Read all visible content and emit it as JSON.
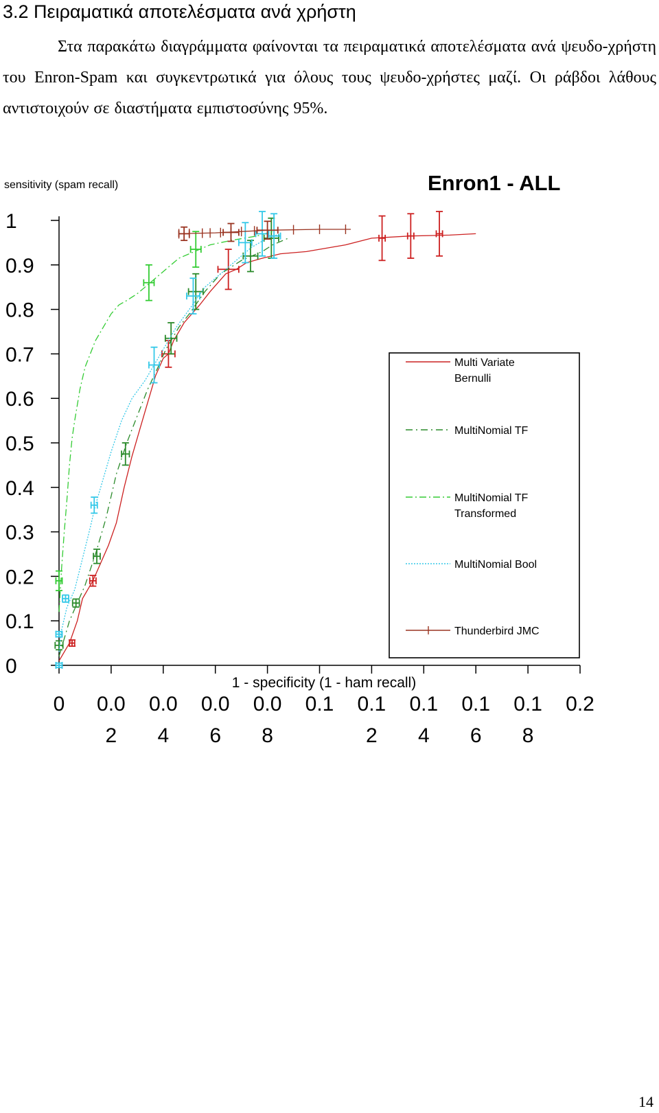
{
  "section": {
    "heading": "3.2 Πειραματικά αποτελέσματα ανά χρήστη",
    "paragraph": "Στα παρακάτω διαγράμματα φαίνονται τα πειραματικά αποτελέσματα ανά ψευδο-χρήστη του Enron-Spam και συγκεντρωτικά για όλους τους ψευδο-χρήστες μαζί. Οι ράβδοι λάθους αντιστοιχούν σε διαστήματα εμπιστοσύνης 95%."
  },
  "page_number": "14",
  "chart_data": {
    "type": "line",
    "title": "Enron1 - ALL",
    "xlabel": "1 - specificity (1 - ham recall)",
    "ylabel": "sensitivity (spam recall)",
    "xlim": [
      0,
      0.2
    ],
    "ylim": [
      0,
      1
    ],
    "grid": false,
    "legend_position": "right",
    "x_ticks": [
      {
        "value": 0,
        "line1": "0",
        "line2": ""
      },
      {
        "value": 0.02,
        "line1": "0.0",
        "line2": "2"
      },
      {
        "value": 0.04,
        "line1": "0.0",
        "line2": "4"
      },
      {
        "value": 0.06,
        "line1": "0.0",
        "line2": "6"
      },
      {
        "value": 0.08,
        "line1": "0.0",
        "line2": "8"
      },
      {
        "value": 0.1,
        "line1": "0.1",
        "line2": ""
      },
      {
        "value": 0.12,
        "line1": "0.1",
        "line2": "2"
      },
      {
        "value": 0.14,
        "line1": "0.1",
        "line2": "4"
      },
      {
        "value": 0.16,
        "line1": "0.1",
        "line2": "6"
      },
      {
        "value": 0.18,
        "line1": "0.1",
        "line2": "8"
      },
      {
        "value": 0.2,
        "line1": "0.2",
        "line2": ""
      }
    ],
    "y_ticks": [
      {
        "value": 0,
        "label": "0"
      },
      {
        "value": 0.1,
        "label": "0.1"
      },
      {
        "value": 0.2,
        "label": "0.2"
      },
      {
        "value": 0.3,
        "label": "0.3"
      },
      {
        "value": 0.4,
        "label": "0.4"
      },
      {
        "value": 0.5,
        "label": "0.5"
      },
      {
        "value": 0.6,
        "label": "0.6"
      },
      {
        "value": 0.7,
        "label": "0.7"
      },
      {
        "value": 0.8,
        "label": "0.8"
      },
      {
        "value": 0.9,
        "label": "0.9"
      },
      {
        "value": 1,
        "label": "1"
      }
    ],
    "series": [
      {
        "name": "Multi Variate Bernulli",
        "color": "#cc2020",
        "dash": "",
        "line_width": 1.3,
        "points": [
          [
            0,
            0.01
          ],
          [
            0.002,
            0.03
          ],
          [
            0.004,
            0.05
          ],
          [
            0.007,
            0.1
          ],
          [
            0.009,
            0.15
          ],
          [
            0.013,
            0.19
          ],
          [
            0.016,
            0.23
          ],
          [
            0.019,
            0.27
          ],
          [
            0.022,
            0.32
          ],
          [
            0.025,
            0.4
          ],
          [
            0.028,
            0.47
          ],
          [
            0.031,
            0.53
          ],
          [
            0.034,
            0.59
          ],
          [
            0.037,
            0.65
          ],
          [
            0.04,
            0.69
          ],
          [
            0.042,
            0.7
          ],
          [
            0.044,
            0.73
          ],
          [
            0.048,
            0.77
          ],
          [
            0.054,
            0.81
          ],
          [
            0.058,
            0.84
          ],
          [
            0.064,
            0.88
          ],
          [
            0.068,
            0.89
          ],
          [
            0.072,
            0.905
          ],
          [
            0.078,
            0.915
          ],
          [
            0.085,
            0.925
          ],
          [
            0.095,
            0.93
          ],
          [
            0.11,
            0.945
          ],
          [
            0.12,
            0.96
          ],
          [
            0.135,
            0.965
          ],
          [
            0.15,
            0.967
          ],
          [
            0.16,
            0.97
          ]
        ],
        "error_bars": [
          {
            "x": 0.005,
            "y": 0.05,
            "xe": 0.001,
            "ye": 0.007
          },
          {
            "x": 0.013,
            "y": 0.19,
            "xe": 0.0012,
            "ye": 0.012
          },
          {
            "x": 0.042,
            "y": 0.7,
            "xe": 0.0025,
            "ye": 0.03
          },
          {
            "x": 0.065,
            "y": 0.89,
            "xe": 0.004,
            "ye": 0.045
          },
          {
            "x": 0.124,
            "y": 0.96,
            "xe": 0.0012,
            "ye": 0.05
          },
          {
            "x": 0.135,
            "y": 0.965,
            "xe": 0.0012,
            "ye": 0.05
          },
          {
            "x": 0.146,
            "y": 0.97,
            "xe": 0.0012,
            "ye": 0.05
          }
        ]
      },
      {
        "name": "MultiNomial TF",
        "color": "#2a8a2a",
        "dash": "10 5 2 5",
        "line_width": 1.3,
        "points": [
          [
            0,
            0.02
          ],
          [
            0.002,
            0.06
          ],
          [
            0.004,
            0.1
          ],
          [
            0.007,
            0.14
          ],
          [
            0.01,
            0.18
          ],
          [
            0.014,
            0.25
          ],
          [
            0.018,
            0.33
          ],
          [
            0.022,
            0.43
          ],
          [
            0.026,
            0.5
          ],
          [
            0.03,
            0.56
          ],
          [
            0.034,
            0.62
          ],
          [
            0.038,
            0.67
          ],
          [
            0.041,
            0.71
          ],
          [
            0.043,
            0.73
          ],
          [
            0.046,
            0.76
          ],
          [
            0.05,
            0.79
          ],
          [
            0.056,
            0.84
          ],
          [
            0.062,
            0.88
          ],
          [
            0.07,
            0.91
          ],
          [
            0.078,
            0.93
          ],
          [
            0.082,
            0.945
          ],
          [
            0.088,
            0.96
          ]
        ],
        "error_bars": [
          {
            "x": 0,
            "y": 0.045,
            "xe": 0.0015,
            "ye": 0.01
          },
          {
            "x": 0.0065,
            "y": 0.14,
            "xe": 0.0013,
            "ye": 0.009
          },
          {
            "x": 0.0145,
            "y": 0.245,
            "xe": 0.0013,
            "ye": 0.016
          },
          {
            "x": 0.0255,
            "y": 0.475,
            "xe": 0.0015,
            "ye": 0.025
          },
          {
            "x": 0.043,
            "y": 0.735,
            "xe": 0.0022,
            "ye": 0.035
          },
          {
            "x": 0.0525,
            "y": 0.84,
            "xe": 0.0028,
            "ye": 0.04
          },
          {
            "x": 0.0735,
            "y": 0.92,
            "xe": 0.0028,
            "ye": 0.035
          },
          {
            "x": 0.0815,
            "y": 0.96,
            "xe": 0.0028,
            "ye": 0.045
          }
        ]
      },
      {
        "name": "MultiNomial TF Transformed",
        "color": "#33cc33",
        "dash": "10 4 2 4",
        "line_width": 1.3,
        "points": [
          [
            0,
            0.12
          ],
          [
            0.001,
            0.22
          ],
          [
            0.002,
            0.3
          ],
          [
            0.003,
            0.37
          ],
          [
            0.004,
            0.45
          ],
          [
            0.005,
            0.51
          ],
          [
            0.006,
            0.55
          ],
          [
            0.008,
            0.62
          ],
          [
            0.01,
            0.67
          ],
          [
            0.012,
            0.7
          ],
          [
            0.014,
            0.73
          ],
          [
            0.016,
            0.75
          ],
          [
            0.018,
            0.77
          ],
          [
            0.02,
            0.79
          ],
          [
            0.023,
            0.81
          ],
          [
            0.026,
            0.82
          ],
          [
            0.03,
            0.835
          ],
          [
            0.034,
            0.855
          ],
          [
            0.038,
            0.875
          ],
          [
            0.042,
            0.895
          ],
          [
            0.046,
            0.915
          ],
          [
            0.052,
            0.93
          ],
          [
            0.058,
            0.945
          ],
          [
            0.066,
            0.955
          ],
          [
            0.076,
            0.965
          ],
          [
            0.082,
            0.975
          ]
        ],
        "error_bars": [
          {
            "x": 0,
            "y": 0.19,
            "xe": 0.0012,
            "ye": 0.022
          },
          {
            "x": 0.0345,
            "y": 0.86,
            "xe": 0.002,
            "ye": 0.04
          },
          {
            "x": 0.0525,
            "y": 0.935,
            "xe": 0.002,
            "ye": 0.04
          }
        ]
      },
      {
        "name": "MultiNomial Bool",
        "color": "#33c8e8",
        "dash": "2 2",
        "line_width": 1.3,
        "points": [
          [
            0,
            0.03
          ],
          [
            0.001,
            0.08
          ],
          [
            0.003,
            0.13
          ],
          [
            0.006,
            0.17
          ],
          [
            0.009,
            0.24
          ],
          [
            0.012,
            0.31
          ],
          [
            0.014,
            0.36
          ],
          [
            0.017,
            0.42
          ],
          [
            0.02,
            0.48
          ],
          [
            0.024,
            0.55
          ],
          [
            0.028,
            0.6
          ],
          [
            0.033,
            0.64
          ],
          [
            0.036,
            0.67
          ],
          [
            0.038,
            0.69
          ],
          [
            0.041,
            0.72
          ],
          [
            0.045,
            0.76
          ],
          [
            0.05,
            0.8
          ],
          [
            0.056,
            0.85
          ],
          [
            0.062,
            0.88
          ],
          [
            0.068,
            0.91
          ],
          [
            0.074,
            0.94
          ],
          [
            0.08,
            0.96
          ],
          [
            0.085,
            0.97
          ]
        ],
        "error_bars": [
          {
            "x": 0,
            "y": 0,
            "xe": 0.0012,
            "ye": 0.005
          },
          {
            "x": 0,
            "y": 0.07,
            "xe": 0.0012,
            "ye": 0.006
          },
          {
            "x": 0.0025,
            "y": 0.15,
            "xe": 0.0012,
            "ye": 0.008
          },
          {
            "x": 0.0135,
            "y": 0.36,
            "xe": 0.0012,
            "ye": 0.018
          },
          {
            "x": 0.0365,
            "y": 0.675,
            "xe": 0.002,
            "ye": 0.04
          },
          {
            "x": 0.0515,
            "y": 0.83,
            "xe": 0.0025,
            "ye": 0.04
          },
          {
            "x": 0.0715,
            "y": 0.95,
            "xe": 0.0025,
            "ye": 0.045
          },
          {
            "x": 0.078,
            "y": 0.97,
            "xe": 0.0025,
            "ye": 0.05
          },
          {
            "x": 0.0825,
            "y": 0.965,
            "xe": 0.0025,
            "ye": 0.05
          }
        ]
      },
      {
        "name": "Thunderbird JMC",
        "color": "#993320",
        "dash": "",
        "line_width": 1.3,
        "points": [
          [
            0.046,
            0.97
          ],
          [
            0.06,
            0.972
          ],
          [
            0.08,
            0.978
          ],
          [
            0.1,
            0.98
          ],
          [
            0.112,
            0.98
          ]
        ],
        "tick_marks_x": [
          0.046,
          0.048,
          0.05,
          0.055,
          0.058,
          0.062,
          0.066,
          0.07,
          0.075,
          0.08,
          0.09,
          0.1,
          0.11
        ],
        "error_bars": [
          {
            "x": 0.048,
            "y": 0.97,
            "xe": 0.002,
            "ye": 0.015
          },
          {
            "x": 0.066,
            "y": 0.973,
            "xe": 0.003,
            "ye": 0.02
          },
          {
            "x": 0.08,
            "y": 0.978,
            "xe": 0.004,
            "ye": 0.02
          }
        ]
      }
    ]
  }
}
